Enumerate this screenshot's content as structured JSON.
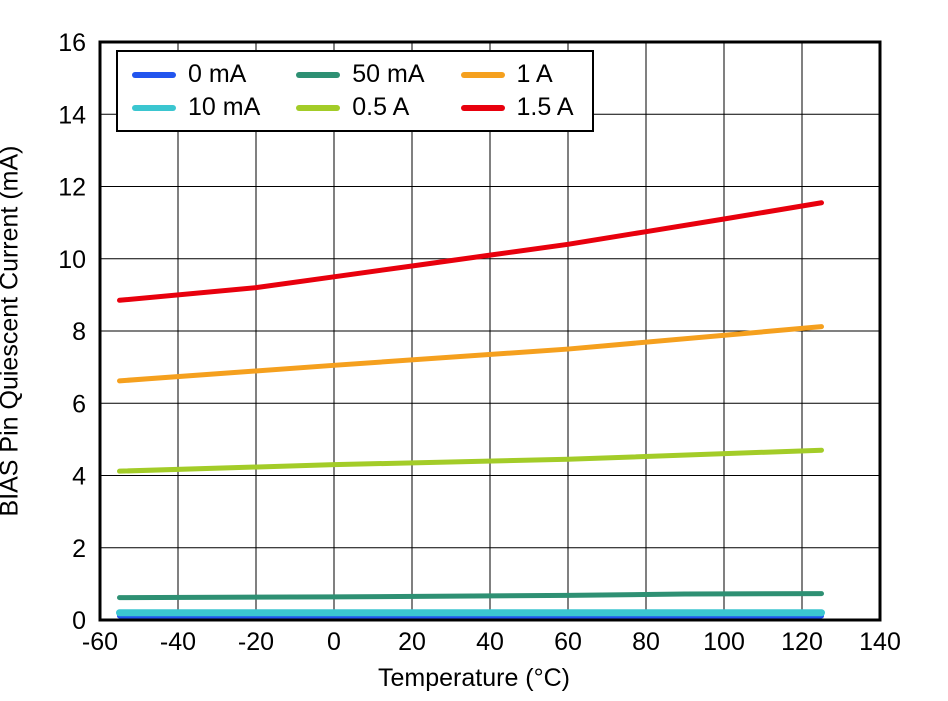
{
  "chart_data": {
    "type": "line",
    "title": "",
    "xlabel": "Temperature (°C)",
    "ylabel": "BIAS Pin Quiescent Current (mA)",
    "xlim": [
      -60,
      140
    ],
    "ylim": [
      0,
      16
    ],
    "xticks": [
      -60,
      -40,
      -20,
      0,
      20,
      40,
      60,
      80,
      100,
      120,
      140
    ],
    "yticks": [
      0,
      2,
      4,
      6,
      8,
      10,
      12,
      14,
      16
    ],
    "grid": true,
    "legend_position": "top-left",
    "legend_order": [
      "0 mA",
      "50 mA",
      "1 A",
      "10 mA",
      "0.5 A",
      "1.5 A"
    ],
    "series": [
      {
        "name": "0 mA",
        "color": "#2255ee",
        "width": 5,
        "points": [
          [
            -55,
            0.11
          ],
          [
            0,
            0.11
          ],
          [
            60,
            0.11
          ],
          [
            125,
            0.11
          ]
        ]
      },
      {
        "name": "10 mA",
        "color": "#3bc6d0",
        "width": 7,
        "points": [
          [
            -55,
            0.2
          ],
          [
            0,
            0.2
          ],
          [
            60,
            0.2
          ],
          [
            125,
            0.2
          ]
        ]
      },
      {
        "name": "50 mA",
        "color": "#2e9073",
        "width": 5,
        "points": [
          [
            -55,
            0.62
          ],
          [
            0,
            0.64
          ],
          [
            60,
            0.68
          ],
          [
            90,
            0.72
          ],
          [
            125,
            0.73
          ]
        ]
      },
      {
        "name": "0.5 A",
        "color": "#a3cc28",
        "width": 5,
        "points": [
          [
            -55,
            4.12
          ],
          [
            0,
            4.3
          ],
          [
            60,
            4.45
          ],
          [
            125,
            4.7
          ]
        ]
      },
      {
        "name": "1 A",
        "color": "#f5a01e",
        "width": 5,
        "points": [
          [
            -55,
            6.62
          ],
          [
            0,
            7.05
          ],
          [
            60,
            7.5
          ],
          [
            125,
            8.12
          ]
        ]
      },
      {
        "name": "1.5 A",
        "color": "#e8000d",
        "width": 5,
        "points": [
          [
            -55,
            8.85
          ],
          [
            -20,
            9.2
          ],
          [
            0,
            9.5
          ],
          [
            20,
            9.8
          ],
          [
            40,
            10.1
          ],
          [
            60,
            10.4
          ],
          [
            80,
            10.75
          ],
          [
            100,
            11.1
          ],
          [
            125,
            11.55
          ]
        ]
      }
    ]
  }
}
